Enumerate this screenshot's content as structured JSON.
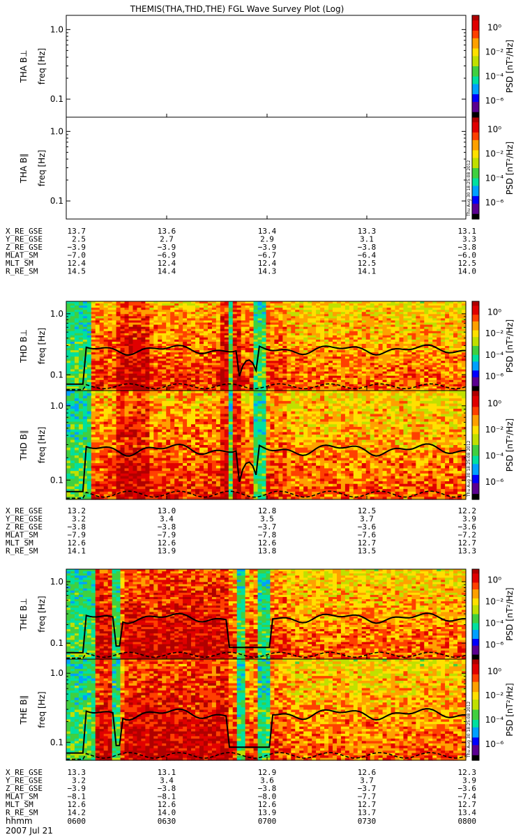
{
  "title": "THEMIS(THA,THD,THE) FGL Wave Survey Plot (Log)",
  "date_label": "2007 Jul 21",
  "time_row_label": "hhmm",
  "time_ticks": [
    "0600",
    "0630",
    "0700",
    "0730",
    "0800"
  ],
  "ephem_labels": [
    "X_RE_GSE",
    "Y_RE_GSE",
    "Z_RE_GSE",
    "MLAT_SM",
    "MLT_SM",
    "R_RE_SM"
  ],
  "colorbar": {
    "label": "PSD [nT²/Hz]",
    "ticks": [
      "10⁰",
      "10⁻²",
      "10⁻⁴",
      "10⁻⁶"
    ],
    "stamp": "Thu Aug 30 18:25:08 2012"
  },
  "colors": {
    "line": "#000000",
    "scale": [
      "#000000",
      "#5a0090",
      "#0000ff",
      "#00a0ff",
      "#00e0a0",
      "#40d040",
      "#c0e000",
      "#ffe000",
      "#ffa000",
      "#ff4000",
      "#e00000",
      "#b00000"
    ]
  },
  "chart_data": [
    {
      "type": "heatmap",
      "probe": "THA",
      "ylabel_probe": "THA B⊥",
      "ylabel_unit": "freq [Hz]",
      "yscale": "log",
      "y_ticks": [
        "1.0",
        "0.1"
      ],
      "has_data": false,
      "x": [
        "0600",
        "0630",
        "0700",
        "0730",
        "0800"
      ]
    },
    {
      "type": "heatmap",
      "probe": "THA",
      "ylabel_probe": "THA B∥",
      "ylabel_unit": "freq [Hz]",
      "yscale": "log",
      "y_ticks": [
        "1.0",
        "0.1"
      ],
      "has_data": false,
      "x": [
        "0600",
        "0630",
        "0700",
        "0730",
        "0800"
      ]
    },
    {
      "type": "heatmap",
      "probe": "THD",
      "ylabel_probe": "THD B⊥",
      "ylabel_unit": "freq [Hz]",
      "yscale": "log",
      "y_ticks": [
        "1.0",
        "0.1"
      ],
      "has_data": true,
      "x": [
        "0600",
        "0630",
        "0700",
        "0730",
        "0800"
      ]
    },
    {
      "type": "heatmap",
      "probe": "THD",
      "ylabel_probe": "THD B∥",
      "ylabel_unit": "freq [Hz]",
      "yscale": "log",
      "y_ticks": [
        "1.0",
        "0.1"
      ],
      "has_data": true,
      "x": [
        "0600",
        "0630",
        "0700",
        "0730",
        "0800"
      ]
    },
    {
      "type": "heatmap",
      "probe": "THE",
      "ylabel_probe": "THE B⊥",
      "ylabel_unit": "freq [Hz]",
      "yscale": "log",
      "y_ticks": [
        "1.0",
        "0.1"
      ],
      "has_data": true,
      "x": [
        "0600",
        "0630",
        "0700",
        "0730",
        "0800"
      ]
    },
    {
      "type": "heatmap",
      "probe": "THE",
      "ylabel_probe": "THE B∥",
      "ylabel_unit": "freq [Hz]",
      "yscale": "log",
      "y_ticks": [
        "1.0",
        "0.1"
      ],
      "has_data": true,
      "x": [
        "0600",
        "0630",
        "0700",
        "0730",
        "0800"
      ]
    }
  ],
  "ephemeris": [
    {
      "probe": "THA",
      "rows": [
        [
          "13.7",
          "13.6",
          "13.4",
          "13.3",
          "13.1"
        ],
        [
          "2.5",
          "2.7",
          "2.9",
          "3.1",
          "3.3"
        ],
        [
          "−3.9",
          "−3.9",
          "−3.9",
          "−3.8",
          "−3.8"
        ],
        [
          "−7.0",
          "−6.9",
          "−6.7",
          "−6.4",
          "−6.0"
        ],
        [
          "12.4",
          "12.4",
          "12.4",
          "12.5",
          "12.5"
        ],
        [
          "14.5",
          "14.4",
          "14.3",
          "14.1",
          "14.0"
        ]
      ]
    },
    {
      "probe": "THD",
      "rows": [
        [
          "13.2",
          "13.0",
          "12.8",
          "12.5",
          "12.2"
        ],
        [
          "3.2",
          "3.4",
          "3.5",
          "3.7",
          "3.9"
        ],
        [
          "−3.8",
          "−3.8",
          "−3.7",
          "−3.6",
          "−3.6"
        ],
        [
          "−7.9",
          "−7.9",
          "−7.8",
          "−7.6",
          "−7.2"
        ],
        [
          "12.6",
          "12.6",
          "12.6",
          "12.7",
          "12.7"
        ],
        [
          "14.1",
          "13.9",
          "13.8",
          "13.5",
          "13.3"
        ]
      ]
    },
    {
      "probe": "THE",
      "rows": [
        [
          "13.3",
          "13.1",
          "12.9",
          "12.6",
          "12.3"
        ],
        [
          "3.2",
          "3.4",
          "3.6",
          "3.7",
          "3.9"
        ],
        [
          "−3.9",
          "−3.8",
          "−3.8",
          "−3.7",
          "−3.6"
        ],
        [
          "−8.1",
          "−8.1",
          "−8.0",
          "−7.7",
          "−7.4"
        ],
        [
          "12.6",
          "12.6",
          "12.6",
          "12.7",
          "12.7"
        ],
        [
          "14.2",
          "14.0",
          "13.9",
          "13.7",
          "13.4"
        ]
      ]
    }
  ]
}
